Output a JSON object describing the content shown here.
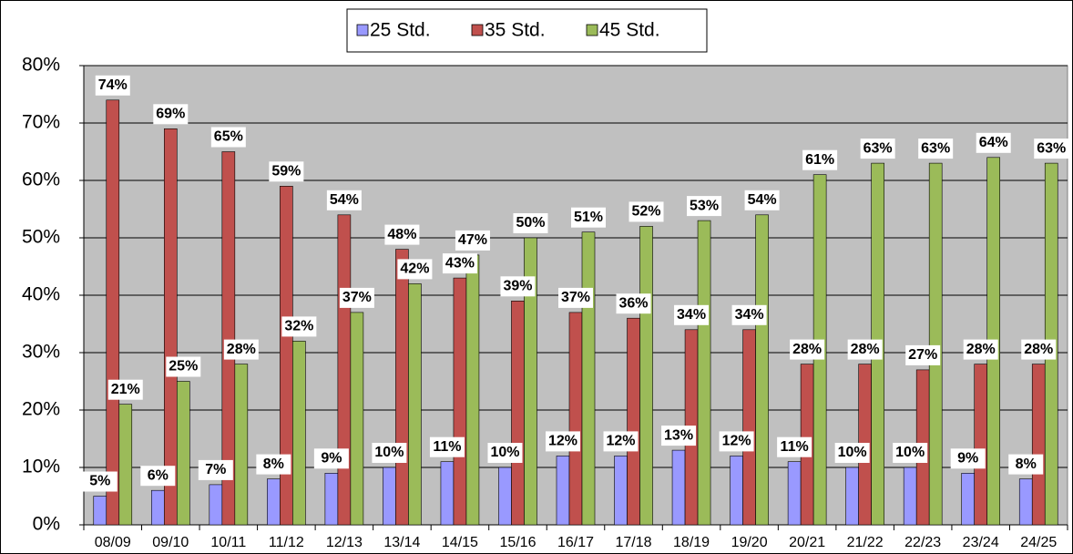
{
  "chart_data": {
    "type": "bar",
    "categories": [
      "08/09",
      "09/10",
      "10/11",
      "11/12",
      "12/13",
      "13/14",
      "14/15",
      "15/16",
      "16/17",
      "17/18",
      "18/19",
      "19/20",
      "20/21",
      "21/22",
      "22/23",
      "23/24",
      "24/25"
    ],
    "series": [
      {
        "name": "25 Std.",
        "color": "#9999ff",
        "values": [
          5,
          6,
          7,
          8,
          9,
          10,
          11,
          10,
          12,
          12,
          13,
          12,
          11,
          10,
          10,
          9,
          8
        ],
        "value_labels": [
          "5%",
          "6%",
          "7%",
          "8%",
          "9%",
          "10%",
          "11%",
          "10%",
          "12%",
          "12%",
          "13%",
          "12%",
          "11%",
          "10%",
          "10%",
          "9%",
          "8%"
        ]
      },
      {
        "name": "35 Std.",
        "color": "#c0504d",
        "values": [
          74,
          69,
          65,
          59,
          54,
          48,
          43,
          39,
          37,
          36,
          34,
          34,
          28,
          28,
          27,
          28,
          28
        ],
        "value_labels": [
          "74%",
          "69%",
          "65%",
          "59%",
          "54%",
          "48%",
          "43%",
          "39%",
          "37%",
          "36%",
          "34%",
          "34%",
          "28%",
          "28%",
          "27%",
          "28%",
          "28%"
        ]
      },
      {
        "name": "45 Std.",
        "color": "#9bbb59",
        "values": [
          21,
          25,
          28,
          32,
          37,
          42,
          47,
          50,
          51,
          52,
          53,
          54,
          61,
          63,
          63,
          64,
          63
        ],
        "value_labels": [
          "21%",
          "25%",
          "28%",
          "32%",
          "37%",
          "42%",
          "47%",
          "50%",
          "51%",
          "52%",
          "53%",
          "54%",
          "61%",
          "63%",
          "63%",
          "64%",
          "63%"
        ]
      }
    ],
    "ylim": [
      0,
      80
    ],
    "yticks": [
      {
        "value": 0,
        "label": "0%"
      },
      {
        "value": 10,
        "label": "10%"
      },
      {
        "value": 20,
        "label": "20%"
      },
      {
        "value": 30,
        "label": "30%"
      },
      {
        "value": 40,
        "label": "40%"
      },
      {
        "value": 50,
        "label": "50%"
      },
      {
        "value": 60,
        "label": "60%"
      },
      {
        "value": 70,
        "label": "70%"
      },
      {
        "value": 80,
        "label": "80%"
      }
    ],
    "grid": true,
    "legend": "top"
  }
}
